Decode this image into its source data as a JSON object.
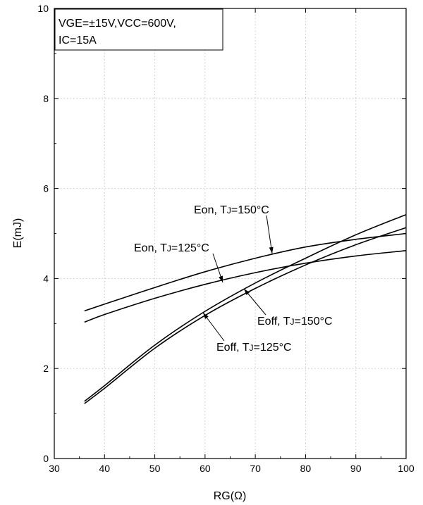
{
  "chart_data": {
    "type": "line",
    "xlabel": "RG(Ω)",
    "ylabel": "E(mJ)",
    "xlim": [
      30,
      100
    ],
    "ylim": [
      0,
      10
    ],
    "x_ticks": [
      30,
      40,
      50,
      60,
      70,
      80,
      90,
      100
    ],
    "y_ticks": [
      0,
      2,
      4,
      6,
      8,
      10
    ],
    "grid": true,
    "conditions": [
      "VGE=±15V,VCC=600V,",
      "IC=15A"
    ],
    "series": [
      {
        "name": "Eon, TJ=150°C",
        "x": [
          36,
          40,
          50,
          60,
          70,
          80,
          90,
          100
        ],
        "y": [
          3.28,
          3.43,
          3.8,
          4.15,
          4.45,
          4.7,
          4.87,
          5.0
        ]
      },
      {
        "name": "Eon, TJ=125°C",
        "x": [
          36,
          40,
          50,
          60,
          70,
          80,
          90,
          100
        ],
        "y": [
          3.03,
          3.2,
          3.56,
          3.87,
          4.13,
          4.34,
          4.5,
          4.62
        ]
      },
      {
        "name": "Eoff, TJ=150°C",
        "x": [
          36,
          40,
          50,
          60,
          70,
          80,
          90,
          100
        ],
        "y": [
          1.27,
          1.62,
          2.52,
          3.27,
          3.9,
          4.45,
          4.97,
          5.42
        ]
      },
      {
        "name": "Eoff, TJ=125°C",
        "x": [
          36,
          40,
          50,
          60,
          70,
          80,
          90,
          100
        ],
        "y": [
          1.22,
          1.56,
          2.45,
          3.18,
          3.78,
          4.3,
          4.75,
          5.13
        ]
      }
    ],
    "annotations": [
      {
        "main": "Eon, T",
        "sub": "J",
        "rest": "=150°C",
        "series": 0
      },
      {
        "main": "Eon, T",
        "sub": "J",
        "rest": "=125°C",
        "series": 1
      },
      {
        "main": "Eoff, T",
        "sub": "J",
        "rest": "=150°C",
        "series": 2
      },
      {
        "main": "Eoff, T",
        "sub": "J",
        "rest": "=125°C",
        "series": 3
      }
    ]
  }
}
